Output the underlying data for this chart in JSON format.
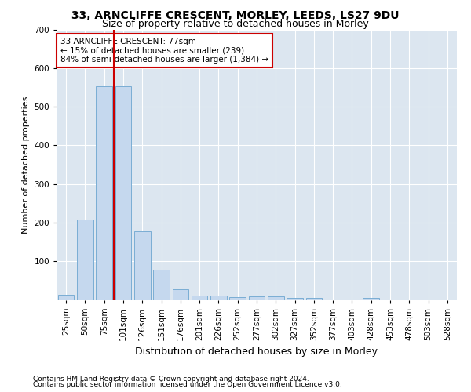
{
  "title1": "33, ARNCLIFFE CRESCENT, MORLEY, LEEDS, LS27 9DU",
  "title2": "Size of property relative to detached houses in Morley",
  "xlabel": "Distribution of detached houses by size in Morley",
  "ylabel": "Number of detached properties",
  "categories": [
    "25sqm",
    "50sqm",
    "75sqm",
    "101sqm",
    "126sqm",
    "151sqm",
    "176sqm",
    "201sqm",
    "226sqm",
    "252sqm",
    "277sqm",
    "302sqm",
    "327sqm",
    "352sqm",
    "377sqm",
    "403sqm",
    "428sqm",
    "453sqm",
    "478sqm",
    "503sqm",
    "528sqm"
  ],
  "values": [
    13,
    207,
    553,
    553,
    178,
    78,
    28,
    12,
    12,
    8,
    10,
    10,
    6,
    5,
    0,
    0,
    6,
    0,
    0,
    0,
    0
  ],
  "bar_color": "#c5d8ee",
  "bar_edge_color": "#7aadd4",
  "vline_color": "#cc0000",
  "vline_x": 2.5,
  "annotation_text": "33 ARNCLIFFE CRESCENT: 77sqm\n← 15% of detached houses are smaller (239)\n84% of semi-detached houses are larger (1,384) →",
  "annotation_box_color": "#cc0000",
  "footer1": "Contains HM Land Registry data © Crown copyright and database right 2024.",
  "footer2": "Contains public sector information licensed under the Open Government Licence v3.0.",
  "ylim": [
    0,
    700
  ],
  "yticks": [
    0,
    100,
    200,
    300,
    400,
    500,
    600,
    700
  ],
  "fig_bg_color": "#ffffff",
  "ax_bg_color": "#dce6f0",
  "grid_color": "#ffffff",
  "title1_fontsize": 10,
  "title2_fontsize": 9,
  "xlabel_fontsize": 9,
  "ylabel_fontsize": 8,
  "tick_fontsize": 7.5,
  "annot_fontsize": 7.5,
  "footer_fontsize": 6.5
}
